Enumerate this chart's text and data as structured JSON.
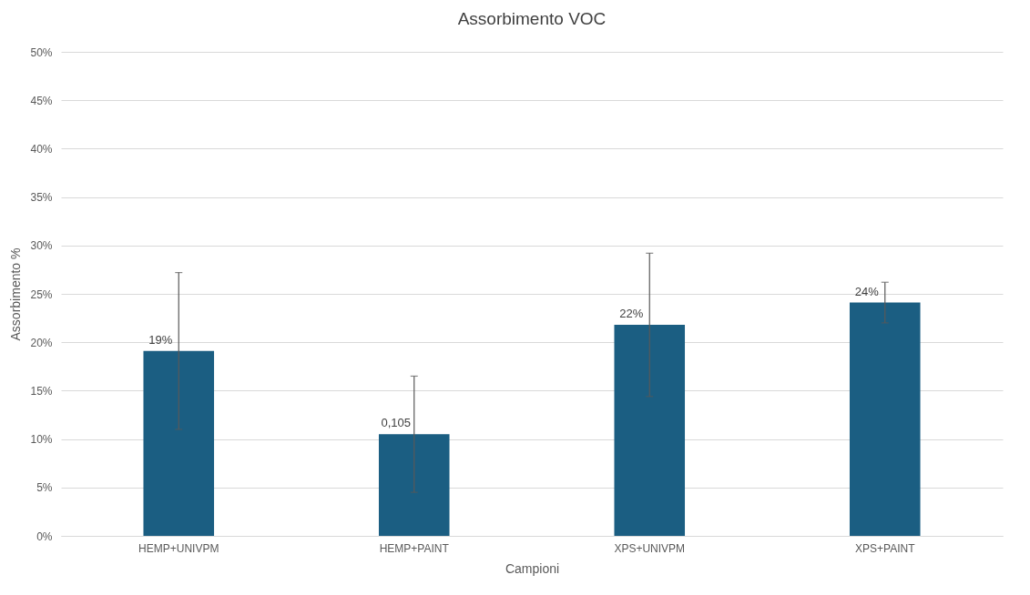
{
  "chart_data": {
    "type": "bar",
    "title": "Assorbimento VOC",
    "xlabel": "Campioni",
    "ylabel": "Assorbimento %",
    "categories": [
      "HEMP+UNIVPM",
      "HEMP+PAINT",
      "XPS+UNIVPM",
      "XPS+PAINT"
    ],
    "values": [
      19.1,
      10.5,
      21.8,
      24.1
    ],
    "errors": [
      8.1,
      6.0,
      7.4,
      2.1
    ],
    "value_labels": [
      "19%",
      null,
      "22%",
      "24%"
    ],
    "annotations": [
      {
        "text": "0,105",
        "x": "HEMP+PAINT",
        "y": 10.5
      }
    ],
    "color": "#1b5e82",
    "ylim": [
      0,
      50
    ],
    "yticks": [
      {
        "value": 0,
        "label": "0%"
      },
      {
        "value": 5,
        "label": "5%"
      },
      {
        "value": 10,
        "label": "10%"
      },
      {
        "value": 15,
        "label": "15%"
      },
      {
        "value": 20,
        "label": "20%"
      },
      {
        "value": 25,
        "label": "25%"
      },
      {
        "value": 30,
        "label": "30%"
      },
      {
        "value": 35,
        "label": "35%"
      },
      {
        "value": 40,
        "label": "40%"
      },
      {
        "value": 45,
        "label": "45%"
      },
      {
        "value": 50,
        "label": "50%"
      }
    ],
    "grid": "y"
  }
}
